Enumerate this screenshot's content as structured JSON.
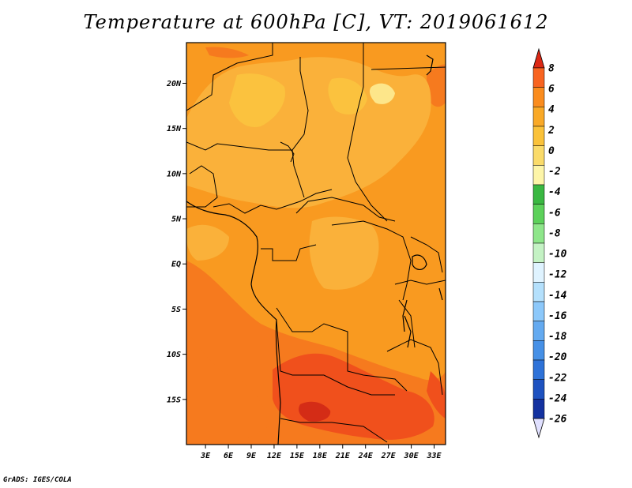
{
  "title": "Temperature at 600hPa [C], VT: 2019061612",
  "credit": "GrADS: IGES/COLA",
  "map": {
    "lon_range": [
      0.5,
      34.5
    ],
    "lat_range": [
      -20,
      24.5
    ],
    "lat_ticks": [
      {
        "lat": 20,
        "label": "20N"
      },
      {
        "lat": 15,
        "label": "15N"
      },
      {
        "lat": 10,
        "label": "10N"
      },
      {
        "lat": 5,
        "label": "5N"
      },
      {
        "lat": 0,
        "label": "EQ"
      },
      {
        "lat": -5,
        "label": "5S"
      },
      {
        "lat": -10,
        "label": "10S"
      },
      {
        "lat": -15,
        "label": "15S"
      }
    ],
    "lon_ticks": [
      {
        "lon": 3,
        "label": "3E"
      },
      {
        "lon": 6,
        "label": "6E"
      },
      {
        "lon": 9,
        "label": "9E"
      },
      {
        "lon": 12,
        "label": "12E"
      },
      {
        "lon": 15,
        "label": "15E"
      },
      {
        "lon": 18,
        "label": "18E"
      },
      {
        "lon": 21,
        "label": "21E"
      },
      {
        "lon": 24,
        "label": "24E"
      },
      {
        "lon": 27,
        "label": "27E"
      },
      {
        "lon": 30,
        "label": "30E"
      },
      {
        "lon": 33,
        "label": "33E"
      }
    ]
  },
  "colorbar": {
    "labels": [
      "8",
      "6",
      "4",
      "2",
      "0",
      "-2",
      "-4",
      "-6",
      "-8",
      "-10",
      "-12",
      "-14",
      "-16",
      "-18",
      "-20",
      "-22",
      "-24",
      "-26"
    ],
    "colors": [
      "#f03c1e",
      "#f86420",
      "#fa8c1e",
      "#f9a927",
      "#fac23a",
      "#fadb6a",
      "#fdf5a8",
      "#3ab842",
      "#5cd15a",
      "#8ee68a",
      "#c4f2c4",
      "#dff3ff",
      "#b4e0fc",
      "#8cc8fa",
      "#64aaf0",
      "#4690e6",
      "#2e72d8",
      "#1e52c0",
      "#1432a0",
      "#0c1478"
    ],
    "top_arrow": "#dc2814",
    "bottom_arrow": "#e0e0ff"
  },
  "field_colors": {
    "c_2_4": "#fab13a",
    "c_4_6": "#f99a20",
    "c_6_8": "#f67a1e",
    "c_8_10": "#f0501c",
    "c_gt10": "#d42c16",
    "c_0_2": "#fbc23e",
    "c_lt0": "#fde68a"
  }
}
